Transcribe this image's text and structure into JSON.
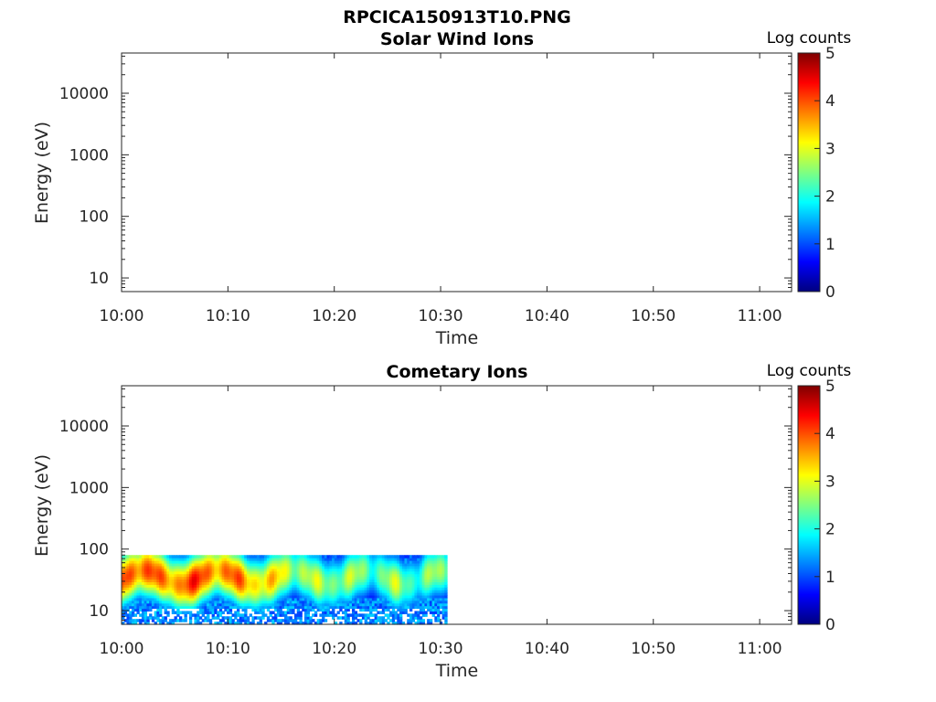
{
  "figure_title": "RPCICA150913T10.PNG",
  "colormap": [
    "#00007f",
    "#0000ff",
    "#0080ff",
    "#00ffff",
    "#80ff80",
    "#ffff00",
    "#ff8000",
    "#ff0000",
    "#7f0000"
  ],
  "chart_data": [
    {
      "type": "heatmap",
      "title": "Solar Wind Ions",
      "xlabel": "Time",
      "ylabel": "Energy (eV)",
      "yscale": "log",
      "xlim": [
        "10:00",
        "11:03"
      ],
      "ylim": [
        6,
        45000
      ],
      "x_ticks": [
        "10:00",
        "10:10",
        "10:20",
        "10:30",
        "10:40",
        "10:50",
        "11:00"
      ],
      "y_ticks": [
        "10",
        "100",
        "1000",
        "10000"
      ],
      "colorbar": {
        "label": "Log counts",
        "ticks": [
          "0",
          "1",
          "2",
          "3",
          "4",
          "5"
        ],
        "range": [
          0,
          5
        ]
      },
      "data_extent": null
    },
    {
      "type": "heatmap",
      "title": "Cometary Ions",
      "xlabel": "Time",
      "ylabel": "Energy (eV)",
      "yscale": "log",
      "xlim": [
        "10:00",
        "11:03"
      ],
      "ylim": [
        6,
        45000
      ],
      "x_ticks": [
        "10:00",
        "10:10",
        "10:20",
        "10:30",
        "10:40",
        "10:50",
        "11:00"
      ],
      "y_ticks": [
        "10",
        "100",
        "1000",
        "10000"
      ],
      "colorbar": {
        "label": "Log counts",
        "ticks": [
          "0",
          "1",
          "2",
          "3",
          "4",
          "5"
        ],
        "range": [
          0,
          5
        ]
      },
      "data_extent": {
        "time_start": "10:00",
        "time_end": "10:30.6",
        "energy_min": 6,
        "energy_max": 80
      },
      "peak_band": {
        "energy_center": 35,
        "log_counts_peak": 4.2
      },
      "approx_intensity_by_minute": [
        {
          "time": "10:00",
          "peak_log_counts": 4.0
        },
        {
          "time": "10:02",
          "peak_log_counts": 4.1
        },
        {
          "time": "10:04",
          "peak_log_counts": 3.6
        },
        {
          "time": "10:06",
          "peak_log_counts": 4.1
        },
        {
          "time": "10:08",
          "peak_log_counts": 3.9
        },
        {
          "time": "10:10",
          "peak_log_counts": 3.8
        },
        {
          "time": "10:12",
          "peak_log_counts": 3.6
        },
        {
          "time": "10:14",
          "peak_log_counts": 3.2
        },
        {
          "time": "10:16",
          "peak_log_counts": 2.9
        },
        {
          "time": "10:18",
          "peak_log_counts": 2.6
        },
        {
          "time": "10:20",
          "peak_log_counts": 2.7
        },
        {
          "time": "10:22",
          "peak_log_counts": 2.5
        },
        {
          "time": "10:24",
          "peak_log_counts": 2.4
        },
        {
          "time": "10:26",
          "peak_log_counts": 2.6
        },
        {
          "time": "10:28",
          "peak_log_counts": 2.3
        },
        {
          "time": "10:30",
          "peak_log_counts": 2.5
        }
      ]
    }
  ]
}
